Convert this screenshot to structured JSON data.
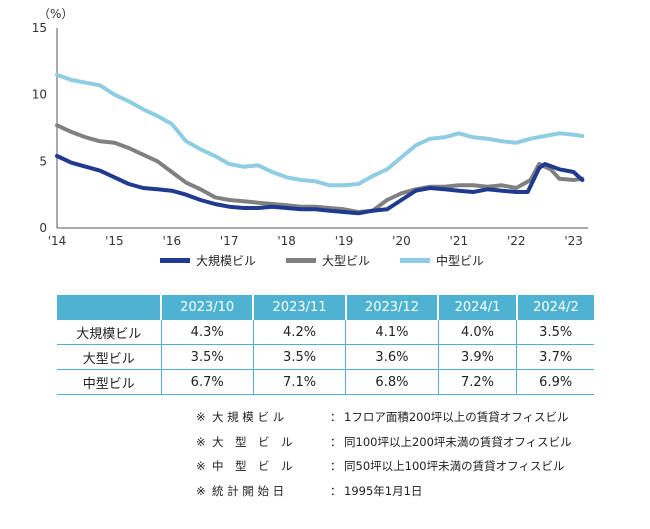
{
  "chart_data": {
    "type": "line",
    "y_unit": "（%）",
    "ylim": [
      0,
      15
    ],
    "yticks": [
      0,
      5,
      10,
      15
    ],
    "xlim": [
      2014,
      2023.25
    ],
    "xticks": [
      {
        "value": 2014,
        "label": "'14"
      },
      {
        "value": 2015,
        "label": "'15"
      },
      {
        "value": 2016,
        "label": "'16"
      },
      {
        "value": 2017,
        "label": "'17"
      },
      {
        "value": 2018,
        "label": "'18"
      },
      {
        "value": 2019,
        "label": "'19"
      },
      {
        "value": 2020,
        "label": "'20"
      },
      {
        "value": 2021,
        "label": "'21"
      },
      {
        "value": 2022,
        "label": "'22"
      },
      {
        "value": 2023,
        "label": "'23"
      }
    ],
    "grid": false,
    "legend_position": "bottom",
    "series": [
      {
        "name": "大規模ビル",
        "color": "#1f3a8f",
        "points": [
          [
            2014,
            5.4
          ],
          [
            2014.25,
            4.9
          ],
          [
            2014.5,
            4.6
          ],
          [
            2014.75,
            4.3
          ],
          [
            2015,
            3.8
          ],
          [
            2015.25,
            3.3
          ],
          [
            2015.5,
            3.0
          ],
          [
            2015.75,
            2.9
          ],
          [
            2016,
            2.8
          ],
          [
            2016.25,
            2.5
          ],
          [
            2016.5,
            2.1
          ],
          [
            2016.75,
            1.8
          ],
          [
            2017,
            1.6
          ],
          [
            2017.25,
            1.5
          ],
          [
            2017.5,
            1.5
          ],
          [
            2017.75,
            1.6
          ],
          [
            2018,
            1.5
          ],
          [
            2018.25,
            1.4
          ],
          [
            2018.5,
            1.4
          ],
          [
            2018.75,
            1.3
          ],
          [
            2019,
            1.2
          ],
          [
            2019.25,
            1.1
          ],
          [
            2019.5,
            1.3
          ],
          [
            2019.75,
            1.4
          ],
          [
            2020,
            2.1
          ],
          [
            2020.25,
            2.8
          ],
          [
            2020.5,
            3.0
          ],
          [
            2020.75,
            2.9
          ],
          [
            2021,
            2.8
          ],
          [
            2021.25,
            2.7
          ],
          [
            2021.5,
            2.9
          ],
          [
            2021.75,
            2.8
          ],
          [
            2022,
            2.7
          ],
          [
            2022.2,
            2.7
          ],
          [
            2022.4,
            4.5
          ],
          [
            2022.5,
            4.8
          ],
          [
            2022.75,
            4.4
          ],
          [
            2023,
            4.2
          ],
          [
            2023.15,
            3.6
          ]
        ]
      },
      {
        "name": "大型ビル",
        "color": "#808080",
        "points": [
          [
            2014,
            7.7
          ],
          [
            2014.25,
            7.2
          ],
          [
            2014.5,
            6.8
          ],
          [
            2014.75,
            6.5
          ],
          [
            2015,
            6.4
          ],
          [
            2015.25,
            6.0
          ],
          [
            2015.5,
            5.5
          ],
          [
            2015.75,
            5.0
          ],
          [
            2016,
            4.2
          ],
          [
            2016.25,
            3.4
          ],
          [
            2016.5,
            2.9
          ],
          [
            2016.75,
            2.3
          ],
          [
            2017,
            2.1
          ],
          [
            2017.25,
            2.0
          ],
          [
            2017.5,
            1.9
          ],
          [
            2017.75,
            1.8
          ],
          [
            2018,
            1.7
          ],
          [
            2018.25,
            1.6
          ],
          [
            2018.5,
            1.6
          ],
          [
            2018.75,
            1.5
          ],
          [
            2019,
            1.4
          ],
          [
            2019.25,
            1.2
          ],
          [
            2019.5,
            1.3
          ],
          [
            2019.75,
            2.1
          ],
          [
            2020,
            2.6
          ],
          [
            2020.25,
            2.9
          ],
          [
            2020.5,
            3.1
          ],
          [
            2020.75,
            3.1
          ],
          [
            2021,
            3.2
          ],
          [
            2021.25,
            3.2
          ],
          [
            2021.5,
            3.1
          ],
          [
            2021.75,
            3.2
          ],
          [
            2022,
            3.0
          ],
          [
            2022.25,
            3.6
          ],
          [
            2022.4,
            4.8
          ],
          [
            2022.6,
            4.4
          ],
          [
            2022.75,
            3.7
          ],
          [
            2023,
            3.6
          ],
          [
            2023.15,
            3.7
          ]
        ]
      },
      {
        "name": "中型ビル",
        "color": "#8fcde2",
        "points": [
          [
            2014,
            11.5
          ],
          [
            2014.25,
            11.1
          ],
          [
            2014.5,
            10.9
          ],
          [
            2014.75,
            10.7
          ],
          [
            2015,
            10.0
          ],
          [
            2015.25,
            9.5
          ],
          [
            2015.5,
            8.9
          ],
          [
            2015.75,
            8.4
          ],
          [
            2016,
            7.8
          ],
          [
            2016.25,
            6.5
          ],
          [
            2016.5,
            5.9
          ],
          [
            2016.75,
            5.4
          ],
          [
            2017,
            4.8
          ],
          [
            2017.25,
            4.6
          ],
          [
            2017.5,
            4.7
          ],
          [
            2017.75,
            4.2
          ],
          [
            2018,
            3.8
          ],
          [
            2018.25,
            3.6
          ],
          [
            2018.5,
            3.5
          ],
          [
            2018.75,
            3.2
          ],
          [
            2019,
            3.2
          ],
          [
            2019.25,
            3.3
          ],
          [
            2019.5,
            3.9
          ],
          [
            2019.75,
            4.4
          ],
          [
            2020,
            5.3
          ],
          [
            2020.25,
            6.2
          ],
          [
            2020.5,
            6.7
          ],
          [
            2020.75,
            6.8
          ],
          [
            2021,
            7.1
          ],
          [
            2021.25,
            6.8
          ],
          [
            2021.5,
            6.7
          ],
          [
            2021.75,
            6.5
          ],
          [
            2022,
            6.4
          ],
          [
            2022.25,
            6.7
          ],
          [
            2022.5,
            6.9
          ],
          [
            2022.75,
            7.1
          ],
          [
            2023,
            7.0
          ],
          [
            2023.15,
            6.9
          ]
        ]
      }
    ]
  },
  "table": {
    "headers": [
      "",
      "2023/10",
      "2023/11",
      "2023/12",
      "2024/1",
      "2024/2"
    ],
    "rows": [
      {
        "label": "大規模ビル",
        "values": [
          "4.3%",
          "4.2%",
          "4.1%",
          "4.0%",
          "3.5%"
        ]
      },
      {
        "label": "大型ビル",
        "values": [
          "3.5%",
          "3.5%",
          "3.6%",
          "3.9%",
          "3.7%"
        ]
      },
      {
        "label": "中型ビル",
        "values": [
          "6.7%",
          "7.1%",
          "6.8%",
          "7.2%",
          "6.9%"
        ]
      }
    ]
  },
  "notes": [
    {
      "mark": "※",
      "label": "大 規 模 ビ ル",
      "colon": "：",
      "text": "1フロア面積200坪以上の賃貸オフィスビル"
    },
    {
      "mark": "※",
      "label": "大　型　ビ　ル",
      "colon": "：",
      "text": "同100坪以上200坪未満の賃貸オフィスビル"
    },
    {
      "mark": "※",
      "label": "中　型　ビ　ル",
      "colon": "：",
      "text": "同50坪以上100坪未満の賃貸オフィスビル"
    },
    {
      "mark": "※",
      "label": "統 計 開 始 日",
      "colon": "：",
      "text": "1995年1月1日"
    }
  ]
}
